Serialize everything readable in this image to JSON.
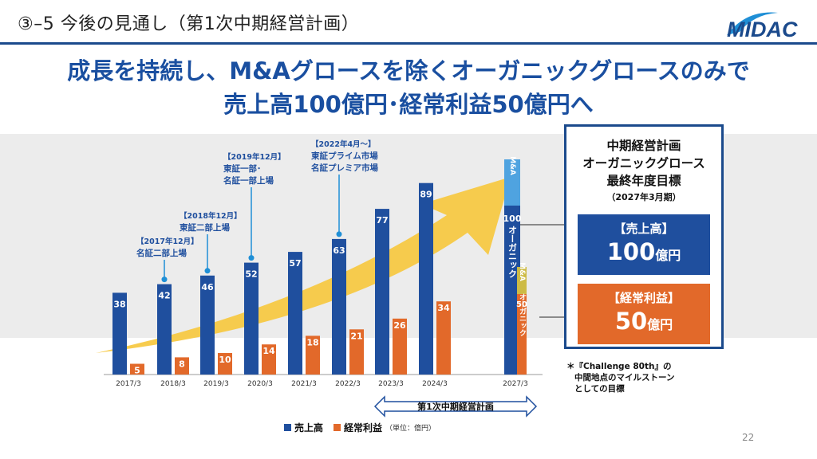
{
  "header": {
    "section_title": "③–5 今後の見通し（第1次中期経営計画）",
    "logo_text": "MIDAC"
  },
  "headline": {
    "line1": "成長を持続し、M&Aグロースを除くオーガニックグロースのみで",
    "line2": "売上高100億円･経常利益50億円へ"
  },
  "chart_data": {
    "type": "bar",
    "categories": [
      "2017/3",
      "2018/3",
      "2019/3",
      "2020/3",
      "2021/3",
      "2022/3",
      "2023/3",
      "2024/3",
      "2027/3"
    ],
    "series": [
      {
        "name": "売上高",
        "values": [
          38,
          42,
          46,
          52,
          57,
          63,
          77,
          89,
          100
        ]
      },
      {
        "name": "経常利益",
        "values": [
          5,
          8,
          10,
          14,
          18,
          21,
          26,
          34,
          50
        ]
      }
    ],
    "ylim": [
      0,
      150
    ],
    "legend": {
      "sales": "売上高",
      "profit": "経常利益",
      "unit": "（単位：億円）"
    },
    "callouts": [
      {
        "category": "2018/3",
        "lines": [
          "【2017年12月】",
          "名証二部上場"
        ]
      },
      {
        "category": "2019/3",
        "lines": [
          "【2018年12月】",
          "東証二部上場"
        ]
      },
      {
        "category": "2020/3",
        "lines": [
          "【2019年12月】",
          "東証一部･",
          "名証一部上場"
        ]
      },
      {
        "category": "2022/3",
        "lines": [
          "【2022年4月～】",
          "東証プライム市場",
          "名証プレミア市場"
        ]
      }
    ],
    "final_segments": {
      "sales_top": "M&A",
      "sales_bottom": "オーガニック",
      "profit_top": "M&A",
      "profit_bottom": "オーガニック"
    },
    "plan_label": "第1次中期経営計画",
    "colors": {
      "sales": "#1f4f9e",
      "profit": "#e2692a",
      "arrow": "#f7c944",
      "band": "#ececec"
    }
  },
  "target_panel": {
    "heading": [
      "中期経営計画",
      "オーガニックグロース",
      "最終年度目標"
    ],
    "period": "（2027年3月期）",
    "sales": {
      "label": "【売上高】",
      "value": "100",
      "unit": "億円"
    },
    "profit": {
      "label": "【経常利益】",
      "value": "50",
      "unit": "億円"
    }
  },
  "footnote": [
    "＊『Challenge 80th』の",
    "中間地点のマイルストーン",
    "としての目標"
  ],
  "page_number": "22"
}
